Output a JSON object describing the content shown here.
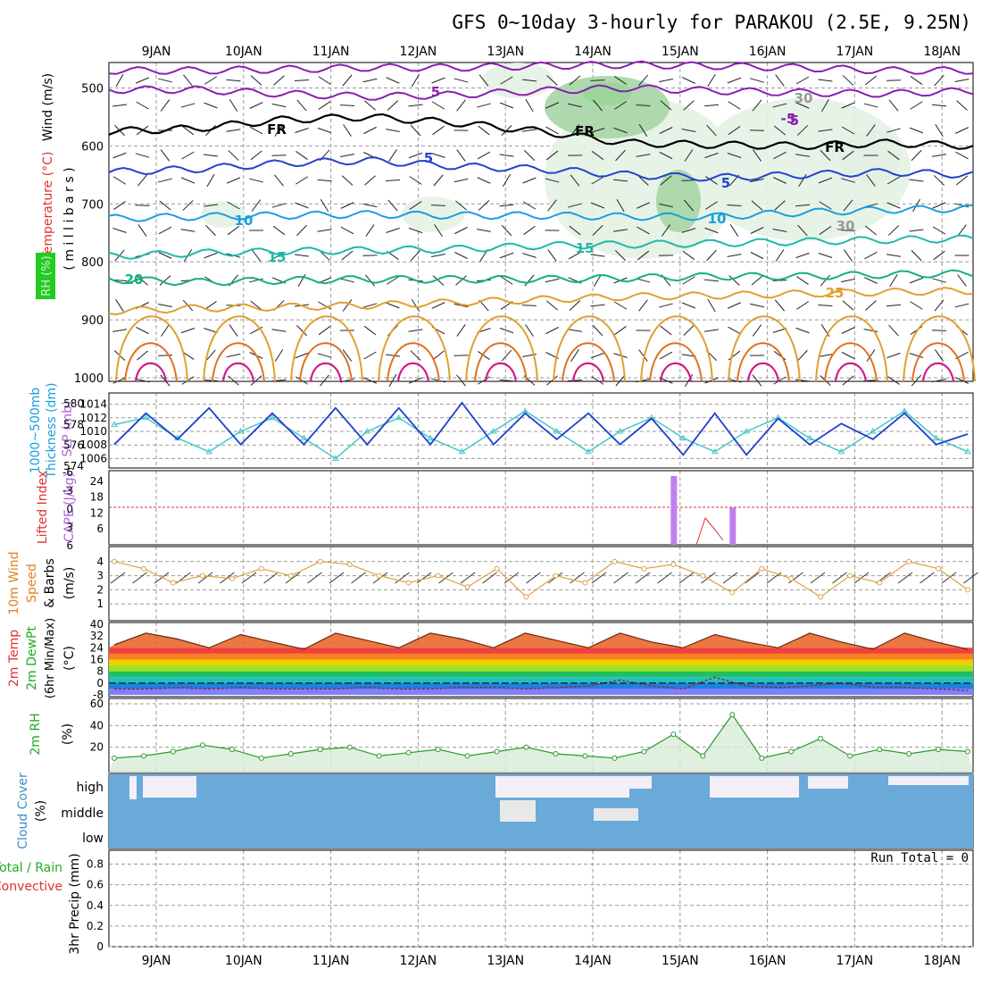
{
  "title": "GFS 0~10day 3-hourly for PARAKOU (2.5E, 9.25N)",
  "colors": {
    "rh_fill_light": "#e6f2e6",
    "rh_fill_mid": "#a6d6a6",
    "rh_fill_bright": "#22dd22",
    "temp_violet": "#8a1fb0",
    "temp_blue": "#2244cc",
    "temp_lightblue": "#1a9fe0",
    "temp_teal": "#20b8a8",
    "temp_green": "#16b080",
    "temp_orange": "#e0a030",
    "temp_darkorange": "#e07020",
    "temp_magenta": "#d01a8a",
    "slp_line": "#44c8c8",
    "thickness_line": "#1f3fcf",
    "cape_bar": "#c080f0",
    "lifted_index": "#e03030",
    "wind_speed": "#e0a040",
    "rh2m_line": "#2a9a2a",
    "cloud": "#6aaad8",
    "cloud_gap": "#f4eef8",
    "label_red": "#e03030",
    "label_green": "#22aa22",
    "label_orange": "#e08020",
    "label_blue": "#4060c0",
    "label_cloud": "#3a90c0",
    "label_violet": "#b060e0"
  },
  "date_labels": [
    "9JAN",
    "10JAN",
    "11JAN",
    "12JAN",
    "13JAN",
    "14JAN",
    "15JAN",
    "16JAN",
    "17JAN",
    "18JAN"
  ],
  "panels": {
    "upper": {
      "label_wind": "Wind (m/s)",
      "label_temp": "Temperature (°C)",
      "label_rh": "RH (%)",
      "label_mb": "( m i l l i b a r s )",
      "y_ticks": [
        "500",
        "600",
        "700",
        "800",
        "900",
        "1000"
      ],
      "contour_labels": [
        "5",
        "5",
        "5",
        "FR",
        "FR",
        "FR",
        "5",
        "10",
        "10",
        "15",
        "15",
        "20",
        "25",
        "30",
        "30",
        "-5"
      ]
    },
    "slp": {
      "label_thk": "1000~500mb",
      "label_thk2": "Thickness (dm)",
      "label_slp": "SLP (mb)",
      "left_ticks": [
        "580",
        "578",
        "576",
        "574"
      ],
      "right_ticks": [
        "1014",
        "1012",
        "1010",
        "1008",
        "1006"
      ]
    },
    "cape": {
      "label_li": "Lifted Index",
      "label_cape": "CAPE (J/kg)",
      "left_ticks": [
        "-6",
        "-3",
        "0",
        "3",
        "6"
      ],
      "right_ticks": [
        "24",
        "18",
        "12",
        "6"
      ]
    },
    "wind10": {
      "label1": "10m Wind",
      "label2": "Speed",
      "label3": "& Barbs",
      "label4": "(m/s)",
      "ticks": [
        "4",
        "3",
        "2",
        "1"
      ]
    },
    "temp2m": {
      "label1": "2m Temp",
      "label2": "2m DewPt",
      "label3": "(6hr Min/Max)",
      "label4": "(°C)",
      "ticks": [
        "40",
        "32",
        "24",
        "16",
        "8",
        "0",
        "-8"
      ]
    },
    "rh2m": {
      "label1": "2m RH",
      "label2": "(%)",
      "ticks": [
        "60",
        "40",
        "20"
      ]
    },
    "cloud": {
      "label1": "Cloud Cover",
      "label2": "(%)",
      "levels": [
        "high",
        "middle",
        "low"
      ]
    },
    "precip": {
      "label1": "Total / Rain",
      "label2": "Convective",
      "label3": "3hr Precip (mm)",
      "ticks": [
        "0.8",
        "0.6",
        "0.4",
        "0.2",
        "0"
      ],
      "run_total": "Run Total = 0"
    }
  },
  "chart_data": [
    {
      "type": "line",
      "title": "GFS 0~10day 3-hourly for PARAKOU (2.5E, 9.25N)",
      "panel": "Temperature / Wind / RH cross-section",
      "ylabel": "millibars",
      "ylim": [
        1000,
        450
      ],
      "y_ticks": [
        500,
        600,
        700,
        800,
        900,
        1000
      ],
      "contours": [
        {
          "name": "-5",
          "level_mb": [
            503,
            503,
            510,
            515,
            512,
            505,
            500,
            505,
            508,
            510,
            505
          ]
        },
        {
          "name": "-5",
          "level_mb": [
            470,
            470,
            468,
            465,
            465,
            462,
            460,
            462,
            465,
            470,
            470
          ]
        },
        {
          "name": "FR",
          "level_mb": [
            575,
            570,
            555,
            550,
            560,
            575,
            595,
            598,
            600,
            595,
            600
          ]
        },
        {
          "name": "5",
          "level_mb": [
            645,
            640,
            630,
            625,
            635,
            640,
            650,
            655,
            650,
            645,
            650
          ]
        },
        {
          "name": "10",
          "level_mb": [
            725,
            722,
            720,
            718,
            720,
            720,
            722,
            722,
            715,
            710,
            708
          ]
        },
        {
          "name": "15",
          "level_mb": [
            790,
            785,
            782,
            780,
            778,
            772,
            770,
            768,
            765,
            762,
            760
          ]
        },
        {
          "name": "20",
          "level_mb": [
            830,
            835,
            832,
            830,
            830,
            830,
            828,
            825,
            825,
            822,
            820
          ]
        },
        {
          "name": "25",
          "level_mb": [
            885,
            880,
            878,
            875,
            870,
            865,
            860,
            858,
            855,
            852,
            850
          ]
        }
      ],
      "x": [
        "9JAN",
        "10JAN",
        "11JAN",
        "12JAN",
        "13JAN",
        "14JAN",
        "15JAN",
        "16JAN",
        "17JAN",
        "18JAN"
      ]
    },
    {
      "type": "line",
      "panel": "Thickness and SLP",
      "series": [
        {
          "name": "1000~500mb Thickness (dm)",
          "values": [
            576,
            579,
            576.5,
            579.5,
            576,
            579,
            576,
            579.5,
            576,
            579.5,
            576,
            580,
            576,
            579,
            576.5,
            579,
            576,
            578.5,
            575,
            579,
            575,
            578.5,
            576,
            578,
            576.5,
            579,
            576,
            577
          ]
        },
        {
          "name": "SLP (mb)",
          "values": [
            1011,
            1012,
            1009,
            1007,
            1010,
            1012,
            1009,
            1006,
            1010,
            1012,
            1009,
            1007,
            1010,
            1013,
            1010,
            1007,
            1010,
            1012,
            1009,
            1007,
            1010,
            1012,
            1009,
            1007,
            1010,
            1013,
            1009,
            1007
          ]
        }
      ],
      "ylim_left": [
        574,
        580
      ],
      "ylim_right": [
        1005,
        1015
      ]
    },
    {
      "type": "bar",
      "panel": "CAPE and Lifted Index",
      "series": [
        {
          "name": "CAPE (J/kg)",
          "values": [
            0,
            0,
            0,
            0,
            0,
            0,
            0,
            0,
            0,
            0,
            0,
            0,
            0,
            0,
            0,
            0,
            0,
            0,
            0,
            26,
            0,
            14,
            0,
            0,
            0,
            0,
            0,
            0,
            0,
            0
          ]
        }
      ],
      "ylim": [
        0,
        28
      ]
    },
    {
      "type": "line",
      "panel": "10m Wind Speed",
      "series": [
        {
          "name": "10m Wind Speed (m/s)",
          "values": [
            4,
            3.5,
            2.5,
            3,
            2.8,
            3.5,
            3,
            4,
            3.8,
            3,
            2.5,
            3,
            2.2,
            3.5,
            1.5,
            3,
            2.5,
            4,
            3.5,
            3.8,
            3,
            1.8,
            3.5,
            2.8,
            1.5,
            3,
            2.5,
            4,
            3.5,
            2
          ]
        }
      ],
      "ylim": [
        0,
        5
      ]
    },
    {
      "type": "area",
      "panel": "2m Temp and DewPt",
      "series": [
        {
          "name": "2m Temp (°C)",
          "values": [
            26,
            34,
            30,
            24,
            33,
            28,
            23,
            34,
            29,
            24,
            34,
            30,
            24,
            34,
            29,
            24,
            34,
            28,
            24,
            33,
            28,
            24,
            34,
            28,
            23,
            34,
            28,
            23
          ]
        },
        {
          "name": "2m DewPt (°C)",
          "values": [
            -4,
            -4,
            -3,
            -4,
            -3,
            -4,
            -4,
            -4,
            -3,
            -4,
            -4,
            -3,
            -3,
            -4,
            -3,
            -2,
            2,
            -2,
            -4,
            4,
            -2,
            -3,
            -2,
            0,
            -3,
            -3,
            -4,
            -5
          ]
        }
      ],
      "ylim": [
        -8,
        40
      ]
    },
    {
      "type": "line",
      "panel": "2m RH",
      "series": [
        {
          "name": "2m RH (%)",
          "values": [
            10,
            12,
            16,
            22,
            18,
            10,
            14,
            18,
            20,
            12,
            15,
            18,
            12,
            16,
            20,
            14,
            12,
            10,
            16,
            32,
            12,
            50,
            10,
            16,
            28,
            12,
            18,
            14,
            18,
            16
          ]
        }
      ],
      "ylim": [
        0,
        60
      ]
    },
    {
      "type": "area",
      "panel": "Cloud Cover",
      "categories": [
        "high",
        "middle",
        "low"
      ]
    },
    {
      "type": "bar",
      "panel": "3hr Precip (mm)",
      "series": [
        {
          "name": "Total / Rain",
          "values": []
        },
        {
          "name": "Convective",
          "values": []
        }
      ],
      "ylim": [
        0,
        0.9
      ]
    }
  ]
}
